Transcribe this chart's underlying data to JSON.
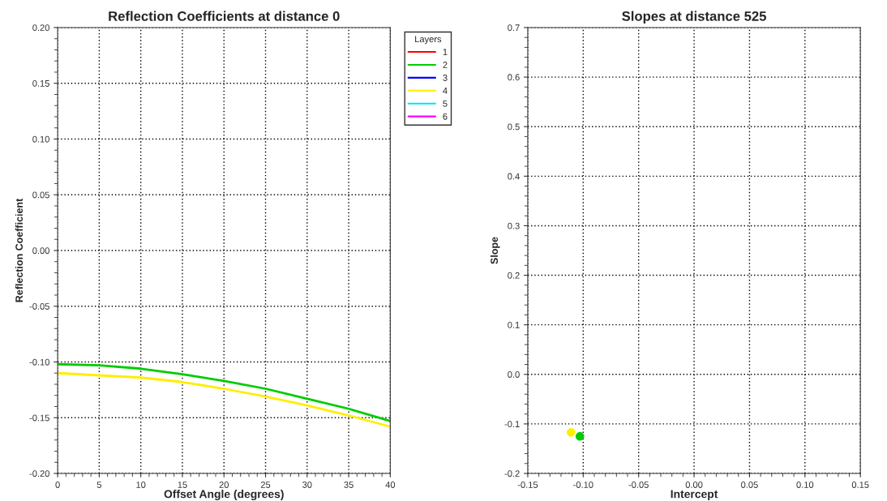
{
  "chart_data": [
    {
      "type": "line",
      "title": "Reflection Coefficients at distance 0",
      "xlabel": "Offset Angle (degrees)",
      "ylabel": "Reflection Coefficient",
      "legend_title": "Layers",
      "legend": "top right",
      "grid": true,
      "line_style": "solid",
      "marker": "none",
      "x": [
        0,
        5,
        10,
        15,
        20,
        25,
        30,
        35,
        40
      ],
      "xlim": [
        0,
        40
      ],
      "xticks": [
        0,
        5,
        10,
        15,
        20,
        25,
        30,
        35,
        40
      ],
      "ylim": [
        -0.2,
        0.2
      ],
      "yticks": [
        {
          "value": -0.2,
          "label": "-0.20"
        },
        {
          "value": -0.15,
          "label": "-0.15"
        },
        {
          "value": -0.1,
          "label": "-0.10"
        },
        {
          "value": -0.05,
          "label": "-0.05"
        },
        {
          "value": 0,
          "label": "0.00"
        },
        {
          "value": 0.05,
          "label": "0.05"
        },
        {
          "value": 0.1,
          "label": "0.10"
        },
        {
          "value": 0.15,
          "label": "0.15"
        },
        {
          "value": 0.2,
          "label": "0.20"
        }
      ],
      "series": [
        {
          "name": "1",
          "color": "#ff0000",
          "values": [
            null,
            null,
            null,
            null,
            null,
            null,
            null,
            null,
            null
          ]
        },
        {
          "name": "2",
          "color": "#00cc00",
          "values": [
            -0.102,
            -0.103,
            -0.106,
            -0.111,
            -0.117,
            -0.124,
            -0.133,
            -0.142,
            -0.153
          ]
        },
        {
          "name": "3",
          "color": "#0000ff",
          "values": [
            null,
            null,
            null,
            null,
            null,
            null,
            null,
            null,
            null
          ]
        },
        {
          "name": "4",
          "color": "#ffee00",
          "values": [
            -0.11,
            -0.112,
            -0.114,
            -0.118,
            -0.124,
            -0.131,
            -0.139,
            -0.148,
            -0.158
          ]
        },
        {
          "name": "5",
          "color": "#00e5ee",
          "values": [
            null,
            null,
            null,
            null,
            null,
            null,
            null,
            null,
            null
          ]
        },
        {
          "name": "6",
          "color": "#ff00ff",
          "values": [
            null,
            null,
            null,
            null,
            null,
            null,
            null,
            null,
            null
          ]
        }
      ]
    },
    {
      "type": "scatter",
      "title": "Slopes at distance 525",
      "xlabel": "Intercept",
      "ylabel": "Slope",
      "grid": true,
      "marker": "circle",
      "xlim": [
        -0.15,
        0.15
      ],
      "xticks": [
        {
          "value": -0.15,
          "label": "-0.15"
        },
        {
          "value": -0.1,
          "label": "-0.10"
        },
        {
          "value": -0.05,
          "label": "-0.05"
        },
        {
          "value": 0,
          "label": "0.00"
        },
        {
          "value": 0.05,
          "label": "0.05"
        },
        {
          "value": 0.1,
          "label": "0.10"
        },
        {
          "value": 0.15,
          "label": "0.15"
        }
      ],
      "ylim": [
        -0.2,
        0.7
      ],
      "yticks": [
        -0.2,
        -0.1,
        {
          "value": 0,
          "label": "0.0"
        },
        0.1,
        0.2,
        0.3,
        0.4,
        0.5,
        0.6,
        0.7
      ],
      "series": [
        {
          "color": "#ffee00",
          "x": [
            -0.111
          ],
          "values": [
            -0.117
          ]
        },
        {
          "color": "#00cc00",
          "x": [
            -0.103
          ],
          "values": [
            -0.125
          ]
        }
      ]
    }
  ]
}
